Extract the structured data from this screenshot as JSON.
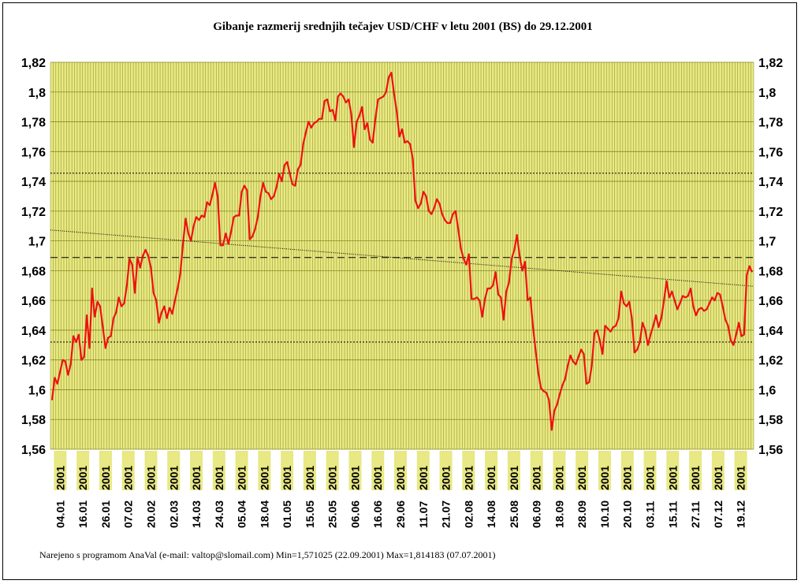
{
  "chart_data": {
    "type": "line",
    "title": "Gibanje razmerij srednjih tečajev USD/CHF v letu 2001 (BS) do 29.12.2001",
    "xlabel": "",
    "ylabel": "",
    "ylim": [
      1.56,
      1.82
    ],
    "yticks": [
      "1,82",
      "1,8",
      "1,78",
      "1,76",
      "1,74",
      "1,72",
      "1,7",
      "1,68",
      "1,66",
      "1,64",
      "1,62",
      "1,6",
      "1,58",
      "1,56"
    ],
    "grid": true,
    "legend": "none",
    "x_tick_labels": [
      "04.01.2001",
      "16.01.2001",
      "26.01.2001",
      "07.02.2001",
      "20.02.2001",
      "02.03.2001",
      "14.03.2001",
      "24.03.2001",
      "05.04.2001",
      "18.04.2001",
      "01.05.2001",
      "15.05.2001",
      "25.05.2001",
      "06.06.2001",
      "16.06.2001",
      "29.06.2001",
      "11.07.2001",
      "21.07.2001",
      "02.08.2001",
      "14.08.2001",
      "25.08.2001",
      "06.09.2001",
      "18.09.2001",
      "28.09.2001",
      "10.10.2001",
      "20.10.2001",
      "03.11.2001",
      "15.11.2001",
      "27.11.2001",
      "07.12.2001",
      "19.12.2001"
    ],
    "x_tick_display": [
      "04.01",
      "16.01",
      "26.01",
      "07.02",
      "20.02",
      "02.03",
      "14.03",
      "24.03",
      "05.04",
      "18.04",
      "01.05",
      "15.05",
      "25.05",
      "06.06",
      "16.06",
      "29.06",
      "11.07",
      "21.07",
      "02.08",
      "14.08",
      "25.08",
      "06.09",
      "18.09",
      "28.09",
      "10.10",
      "20.10",
      "03.11",
      "15.11",
      "27.11",
      "07.12",
      "19.12"
    ],
    "series": [
      {
        "values": [
          1.593,
          1.608,
          1.604,
          1.612,
          1.62,
          1.619,
          1.61,
          1.617,
          1.636,
          1.632,
          1.637,
          1.62,
          1.622,
          1.65,
          1.628,
          1.668,
          1.649,
          1.659,
          1.656,
          1.642,
          1.628,
          1.635,
          1.636,
          1.648,
          1.652,
          1.662,
          1.656,
          1.658,
          1.67,
          1.688,
          1.684,
          1.665,
          1.689,
          1.682,
          1.69,
          1.694,
          1.69,
          1.682,
          1.665,
          1.66,
          1.645,
          1.652,
          1.656,
          1.648,
          1.655,
          1.651,
          1.66,
          1.668,
          1.678,
          1.698,
          1.715,
          1.705,
          1.7,
          1.71,
          1.716,
          1.714,
          1.717,
          1.716,
          1.726,
          1.724,
          1.731,
          1.739,
          1.73,
          1.697,
          1.697,
          1.705,
          1.698,
          1.706,
          1.716,
          1.717,
          1.717,
          1.733,
          1.737,
          1.734,
          1.701,
          1.703,
          1.708,
          1.716,
          1.73,
          1.739,
          1.733,
          1.732,
          1.728,
          1.73,
          1.736,
          1.745,
          1.74,
          1.751,
          1.753,
          1.745,
          1.738,
          1.737,
          1.748,
          1.751,
          1.765,
          1.773,
          1.78,
          1.776,
          1.779,
          1.78,
          1.782,
          1.782,
          1.794,
          1.795,
          1.787,
          1.788,
          1.781,
          1.797,
          1.799,
          1.797,
          1.793,
          1.795,
          1.785,
          1.763,
          1.78,
          1.784,
          1.79,
          1.775,
          1.779,
          1.768,
          1.766,
          1.782,
          1.795,
          1.796,
          1.797,
          1.8,
          1.81,
          1.813,
          1.799,
          1.787,
          1.77,
          1.775,
          1.766,
          1.767,
          1.765,
          1.755,
          1.727,
          1.722,
          1.725,
          1.733,
          1.73,
          1.72,
          1.718,
          1.722,
          1.728,
          1.725,
          1.718,
          1.714,
          1.712,
          1.712,
          1.718,
          1.72,
          1.708,
          1.695,
          1.688,
          1.684,
          1.691,
          1.661,
          1.661,
          1.662,
          1.66,
          1.649,
          1.661,
          1.668,
          1.668,
          1.67,
          1.679,
          1.664,
          1.662,
          1.647,
          1.666,
          1.672,
          1.688,
          1.694,
          1.704,
          1.69,
          1.68,
          1.686,
          1.66,
          1.662,
          1.642,
          1.626,
          1.611,
          1.601,
          1.599,
          1.598,
          1.593,
          1.573,
          1.586,
          1.59,
          1.597,
          1.603,
          1.607,
          1.616,
          1.623,
          1.619,
          1.617,
          1.622,
          1.627,
          1.624,
          1.604,
          1.605,
          1.616,
          1.638,
          1.64,
          1.633,
          1.624,
          1.643,
          1.641,
          1.639,
          1.642,
          1.643,
          1.648,
          1.666,
          1.658,
          1.656,
          1.659,
          1.648,
          1.625,
          1.627,
          1.632,
          1.645,
          1.64,
          1.63,
          1.637,
          1.643,
          1.65,
          1.642,
          1.648,
          1.66,
          1.673,
          1.662,
          1.666,
          1.66,
          1.654,
          1.658,
          1.663,
          1.662,
          1.663,
          1.668,
          1.656,
          1.65,
          1.654,
          1.655,
          1.653,
          1.654,
          1.658,
          1.662,
          1.66,
          1.665,
          1.664,
          1.656,
          1.647,
          1.643,
          1.633,
          1.63,
          1.637,
          1.645,
          1.636,
          1.637,
          1.677,
          1.683,
          1.679
        ]
      }
    ],
    "reference_lines": {
      "dashed": 1.6888,
      "dotted_upper": 1.7455,
      "dotted_lower": 1.632,
      "trend_start": 1.7073,
      "trend_end": 1.6695
    },
    "footer": "Narejeno s programom AnaVal (e-mail: valtop@slomail.com)     Min=1,571025 (22.09.2001) Max=1,814183 (07.07.2001)"
  }
}
